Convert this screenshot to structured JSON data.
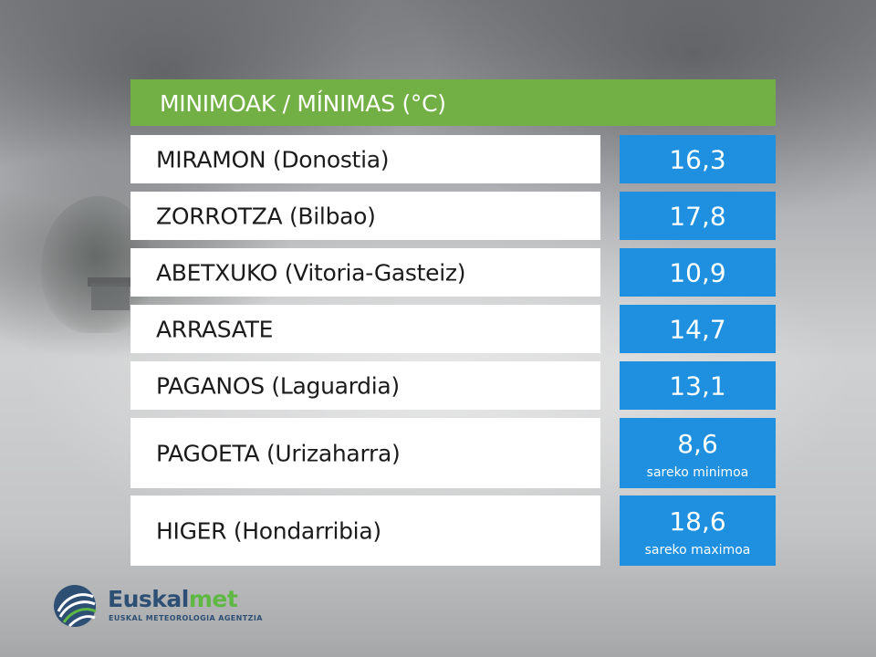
{
  "header": {
    "title": "MINIMOAK / MÍNIMAS (°C)"
  },
  "rows": [
    {
      "name": "MIRAMON (Donostia)",
      "value": "16,3",
      "note": ""
    },
    {
      "name": "ZORROTZA (Bilbao)",
      "value": "17,8",
      "note": ""
    },
    {
      "name": "ABETXUKO (Vitoria-Gasteiz)",
      "value": "10,9",
      "note": ""
    },
    {
      "name": "ARRASATE",
      "value": "14,7",
      "note": ""
    },
    {
      "name": "PAGANOS (Laguardia)",
      "value": "13,1",
      "note": ""
    },
    {
      "name": "PAGOETA (Urizaharra)",
      "value": "8,6",
      "note": "sareko minimoa"
    },
    {
      "name": "HIGER (Hondarribia)",
      "value": "18,6",
      "note": "sareko maximoa"
    }
  ],
  "logo": {
    "word_part1": "Euskal",
    "word_part2": "met",
    "subtitle": "EUSKAL METEOROLOGIA AGENTZIA"
  },
  "colors": {
    "header_green": "#72b046",
    "value_blue": "#1e90df",
    "logo_navy": "#2e4f74",
    "logo_green": "#5fb844"
  }
}
